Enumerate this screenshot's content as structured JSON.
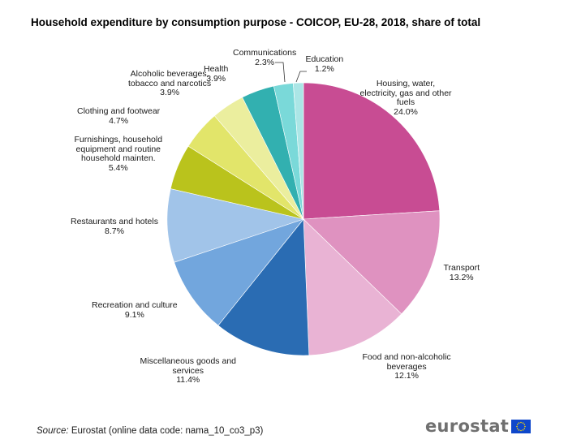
{
  "chart_data": {
    "type": "pie",
    "title": "Household expenditure by consumption purpose - COICOP, EU-28, 2018, share of total",
    "unit": "%",
    "start_angle": "12 o'clock",
    "direction": "clockwise",
    "slices": [
      {
        "label": "Housing, water, electricity, gas and other fuels",
        "label_lines": [
          "Housing, water,",
          "electricity, gas and other",
          "fuels"
        ],
        "value": 24.0,
        "value_label": "24.0%",
        "color": "#c84c93"
      },
      {
        "label": "Transport",
        "label_lines": [
          "Transport"
        ],
        "value": 13.2,
        "value_label": "13.2%",
        "color": "#df92c0"
      },
      {
        "label": "Food and non-alcoholic beverages",
        "label_lines": [
          "Food and non-alcoholic",
          "beverages"
        ],
        "value": 12.1,
        "value_label": "12.1%",
        "color": "#e9b3d4"
      },
      {
        "label": "Miscellaneous goods and services",
        "label_lines": [
          "Miscellaneous goods and",
          "services"
        ],
        "value": 11.4,
        "value_label": "11.4%",
        "color": "#2a6cb3"
      },
      {
        "label": "Recreation and culture",
        "label_lines": [
          "Recreation and culture"
        ],
        "value": 9.1,
        "value_label": "9.1%",
        "color": "#72a6dd"
      },
      {
        "label": "Restaurants and hotels",
        "label_lines": [
          "Restaurants and hotels"
        ],
        "value": 8.7,
        "value_label": "8.7%",
        "color": "#a1c4e9"
      },
      {
        "label": "Furnishings, household equipment and routine household mainten.",
        "label_lines": [
          "Furnishings, household",
          "equipment and routine",
          "household mainten."
        ],
        "value": 5.4,
        "value_label": "5.4%",
        "color": "#bac31c"
      },
      {
        "label": "Clothing and footwear",
        "label_lines": [
          "Clothing and footwear"
        ],
        "value": 4.7,
        "value_label": "4.7%",
        "color": "#e2e56a"
      },
      {
        "label": "Alcoholic beverages, tobacco and narcotics",
        "label_lines": [
          "Alcoholic beverages,",
          "tobacco and narcotics"
        ],
        "value": 3.9,
        "value_label": "3.9%",
        "color": "#ebee9e"
      },
      {
        "label": "Health",
        "label_lines": [
          "Health"
        ],
        "value": 3.9,
        "value_label": "3.9%",
        "color": "#32b0b0"
      },
      {
        "label": "Communications",
        "label_lines": [
          "Communications"
        ],
        "value": 2.3,
        "value_label": "2.3%",
        "color": "#7ad9d9"
      },
      {
        "label": "Education",
        "label_lines": [
          "Education"
        ],
        "value": 1.2,
        "value_label": "1.2%",
        "color": "#abe6e6"
      }
    ]
  },
  "source": {
    "prefix": "Source:",
    "text": " Eurostat (online data code: nama_10_co3_p3)"
  },
  "logo": {
    "text": "eurostat",
    "flag_color": "#0e47cb",
    "star_color": "#ffdd00"
  }
}
